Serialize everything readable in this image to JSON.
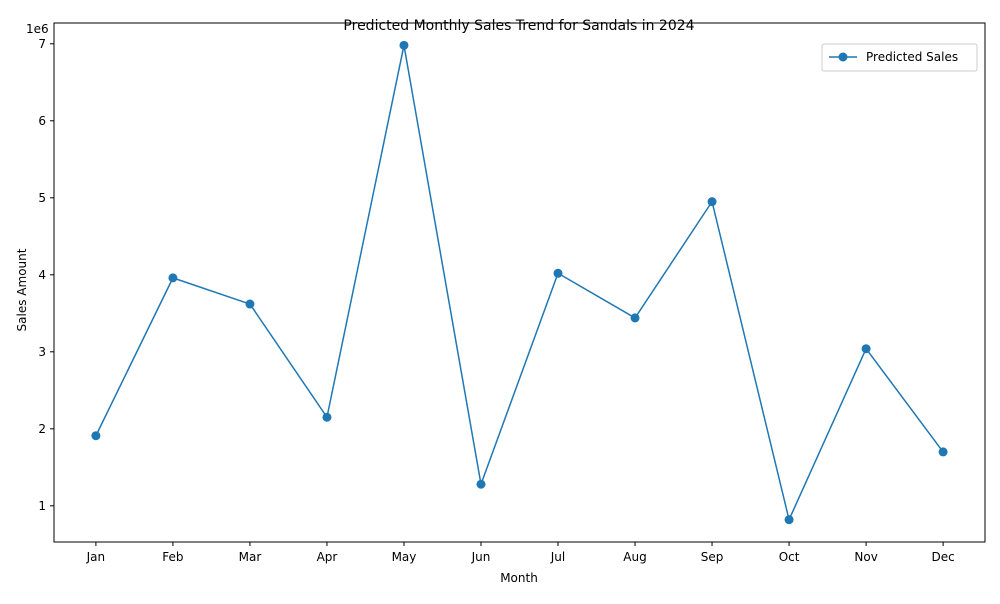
{
  "chart_data": {
    "type": "line",
    "title": "Predicted Monthly Sales Trend for Sandals in 2024",
    "xlabel": "Month",
    "ylabel": "Sales Amount",
    "y_offset_label": "1e6",
    "categories": [
      "Jan",
      "Feb",
      "Mar",
      "Apr",
      "May",
      "Jun",
      "Jul",
      "Aug",
      "Sep",
      "Oct",
      "Nov",
      "Dec"
    ],
    "series": [
      {
        "name": "Predicted Sales",
        "values": [
          1910000,
          3960000,
          3620000,
          2150000,
          6980000,
          1280000,
          4020000,
          3440000,
          4950000,
          820000,
          3040000,
          1700000
        ],
        "color": "#1f77b4",
        "marker": "circle"
      }
    ],
    "y_ticks": [
      1,
      2,
      3,
      4,
      5,
      6,
      7
    ],
    "ylim": [
      530000,
      7270000
    ],
    "grid": false,
    "legend_position": "top-right"
  }
}
